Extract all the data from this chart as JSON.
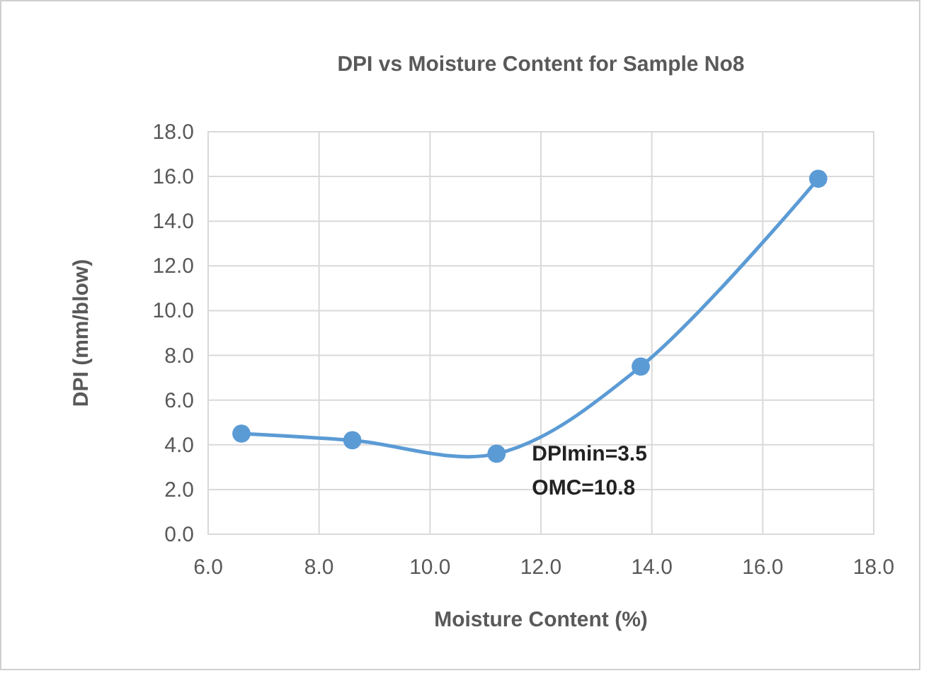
{
  "chart_data": {
    "type": "line",
    "title": "DPI vs Moisture Content for Sample No8",
    "xlabel": "Moisture Content  (%)",
    "ylabel": "DPI (mm/blow)",
    "x": [
      6.6,
      8.6,
      11.2,
      13.8,
      17.0
    ],
    "series": [
      {
        "color": "#5b9bd5",
        "values": [
          4.5,
          4.2,
          3.6,
          7.5,
          15.9
        ]
      }
    ],
    "xlim": [
      6,
      18
    ],
    "xticks": [
      {
        "value": 6,
        "label": "6.0"
      },
      {
        "value": 8,
        "label": "8.0"
      },
      {
        "value": 10,
        "label": "10.0"
      },
      {
        "value": 12,
        "label": "12.0"
      },
      {
        "value": 14,
        "label": "14.0"
      },
      {
        "value": 16,
        "label": "16.0"
      },
      {
        "value": 18,
        "label": "18.0"
      }
    ],
    "ylim": [
      0,
      18
    ],
    "yticks": [
      {
        "value": 0,
        "label": "0.0"
      },
      {
        "value": 2,
        "label": "2.0"
      },
      {
        "value": 4,
        "label": "4.0"
      },
      {
        "value": 6,
        "label": "6.0"
      },
      {
        "value": 8,
        "label": "8.0"
      },
      {
        "value": 10,
        "label": "10.0"
      },
      {
        "value": 12,
        "label": "12.0"
      },
      {
        "value": 14,
        "label": "14.0"
      },
      {
        "value": 16,
        "label": "16.0"
      },
      {
        "value": 18,
        "label": "18.0"
      }
    ],
    "grid": true,
    "marker": "circle",
    "annotations": [
      "DPImin=3.5",
      "OMC=10.8"
    ]
  }
}
